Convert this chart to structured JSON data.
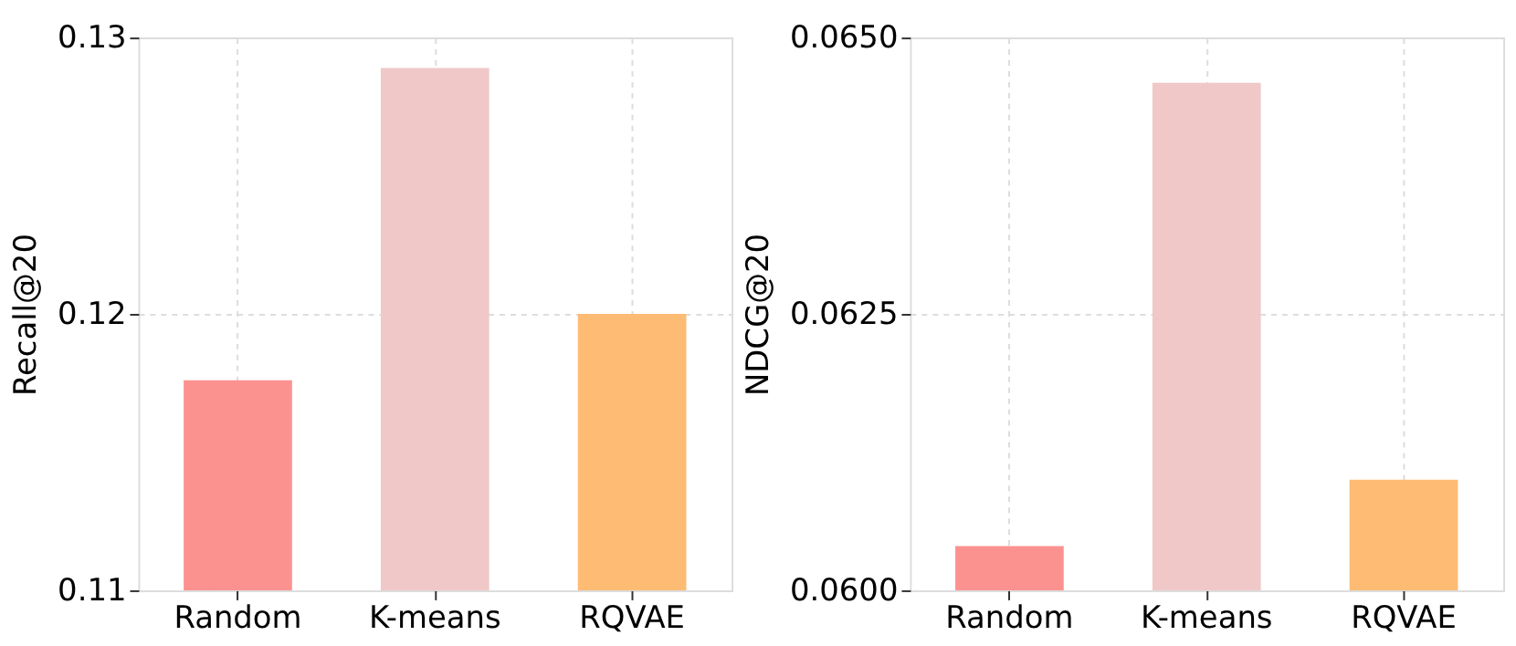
{
  "chart_data": [
    {
      "type": "bar",
      "ylabel": "Recall@20",
      "categories": [
        "Random",
        "K-means",
        "RQVAE"
      ],
      "values": [
        0.1176,
        0.1289,
        0.12
      ],
      "colors": [
        "#fc9290",
        "#f0c8c8",
        "#fdbb74"
      ],
      "ylim": [
        0.11,
        0.13
      ],
      "yticks": [
        0.11,
        0.12,
        0.13
      ],
      "grid": true
    },
    {
      "type": "bar",
      "ylabel": "NDCG@20",
      "categories": [
        "Random",
        "K-means",
        "RQVAE"
      ],
      "values": [
        0.0604,
        0.06459,
        0.061
      ],
      "colors": [
        "#fc9290",
        "#f0c8c8",
        "#fdbb74"
      ],
      "ylim": [
        0.06,
        0.065
      ],
      "yticks": [
        {
          "value": 0.06,
          "label": "0.0600"
        },
        {
          "value": 0.0625,
          "label": "0.0625"
        },
        {
          "value": 0.065,
          "label": "0.0650"
        }
      ],
      "grid": true
    }
  ]
}
